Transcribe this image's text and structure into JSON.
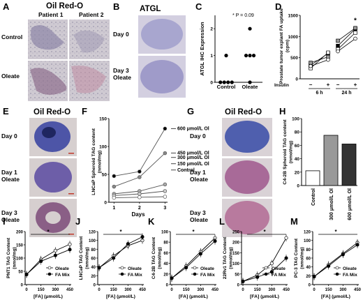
{
  "panels": {
    "A": {
      "label": "A",
      "title": "Oil Red-O",
      "cols": [
        "Patient 1",
        "Patient 2"
      ],
      "rows": [
        "Control",
        "Oleate"
      ]
    },
    "B": {
      "label": "B",
      "title": "ATGL",
      "rows": [
        "Day 0",
        "Day 3\nOleate"
      ]
    },
    "C": {
      "label": "C",
      "annotation": "* P = 0.09"
    },
    "D": {
      "label": "D",
      "insulin_label": "Insulin",
      "insulin_states": [
        "−",
        "+",
        "−",
        "+"
      ],
      "star": "*"
    },
    "E": {
      "label": "E",
      "title": "Oil Red-O",
      "rows": [
        "Day 0",
        "Day 1\nOleate",
        "Day 3\nOleate"
      ]
    },
    "F": {
      "label": "F"
    },
    "G": {
      "label": "G",
      "title": "Oil Red-O",
      "rows": [
        "Day 0",
        "Day 1\nOleate",
        "Day 3\nOleate"
      ]
    },
    "H": {
      "label": "H"
    },
    "I": {
      "label": "I",
      "star": "*"
    },
    "J": {
      "label": "J",
      "star": "*"
    },
    "K": {
      "label": "K",
      "star": "*"
    },
    "L": {
      "label": "L",
      "star": "*"
    },
    "M": {
      "label": "M",
      "star": "*"
    }
  },
  "colors": {
    "micro_bg": "#c7c2cc",
    "tissue_blue": "#5b6fb2",
    "tissue_red": "#b4546f",
    "scale_bar": "#c0392b"
  },
  "chart_data": [
    {
      "id": "C",
      "type": "scatter",
      "ylabel": "ATGL IHC Expression",
      "categories": [
        "Control",
        "Oleate"
      ],
      "series": [
        {
          "values": [
            [
              0,
              0,
              0,
              0,
              1
            ],
            [
              0,
              1,
              1,
              1,
              2
            ]
          ]
        }
      ],
      "ylim": [
        0,
        2.5
      ],
      "yticks": [
        0,
        1,
        2
      ]
    },
    {
      "id": "D",
      "type": "line",
      "ylabel": "Prostate tumor explant FA uptake\n(cpm)",
      "categories": [
        "6 h",
        "24 h"
      ],
      "ylim": [
        0,
        1500
      ],
      "yticks": [
        0,
        500,
        1000,
        1500
      ],
      "series": [
        {
          "values": [
            [
              320,
              600
            ],
            [
              780,
              1180
            ]
          ]
        },
        {
          "values": [
            [
              250,
              620
            ],
            [
              700,
              1090
            ]
          ]
        },
        {
          "values": [
            [
              380,
              520
            ],
            [
              900,
              1200
            ]
          ]
        },
        {
          "values": [
            [
              300,
              450
            ],
            [
              650,
              950
            ]
          ]
        }
      ]
    },
    {
      "id": "F",
      "type": "line",
      "ylabel": "LNCaP Spheroid TAG content\n(nmol/mg)",
      "xlabel": "Days",
      "x": [
        1,
        2,
        3
      ],
      "xlim": [
        0.8,
        3.1
      ],
      "ylim": [
        0,
        150
      ],
      "yticks": [
        0,
        50,
        100,
        150
      ],
      "series": [
        {
          "name": "600 μmol/L Ol",
          "values": [
            47,
            55,
            132
          ]
        },
        {
          "name": "450 μmol/L Ol",
          "values": [
            28,
            45,
            88
          ]
        },
        {
          "name": "300 μmol/L Ol",
          "values": [
            15,
            20,
            32
          ]
        },
        {
          "name": "150 μmol/L Ol",
          "values": [
            12,
            15,
            20
          ]
        },
        {
          "name": "Control",
          "values": [
            8,
            9,
            10
          ]
        }
      ]
    },
    {
      "id": "H",
      "type": "bar",
      "ylabel": "C4-2B Spheroid TAG content\n(nmol/mg)",
      "categories": [
        "Control",
        "300 μmol/L Ol",
        "600 μmol/L Ol"
      ],
      "values": [
        22,
        75,
        62
      ],
      "ylim": [
        0,
        100
      ],
      "yticks": [
        0,
        20,
        40,
        60,
        80,
        100
      ]
    },
    {
      "id": "I",
      "type": "line",
      "ylabel": "PNT1 TAG Content\n(nmol/mg)",
      "xlabel": "[FA] (μmol/L)",
      "x": [
        0,
        150,
        300,
        450
      ],
      "xlim": [
        0,
        450
      ],
      "ylim": [
        0,
        200
      ],
      "yticks": [
        0,
        50,
        100,
        150,
        200
      ],
      "series": [
        {
          "name": "Oleate",
          "values": [
            38,
            95,
            128,
            152
          ]
        },
        {
          "name": "FA Mix",
          "values": [
            38,
            88,
            110,
            132
          ]
        }
      ]
    },
    {
      "id": "J",
      "type": "line",
      "ylabel": "LNCaP TAG Content\n(nmol/mg)",
      "xlabel": "[FA] (μmol/L)",
      "x": [
        0,
        150,
        300,
        450
      ],
      "xlim": [
        0,
        450
      ],
      "ylim": [
        0,
        120
      ],
      "yticks": [
        0,
        20,
        40,
        60,
        80,
        100,
        120
      ],
      "series": [
        {
          "name": "Oleate",
          "values": [
            38,
            65,
            88,
            100
          ]
        },
        {
          "name": "FA Mix",
          "values": [
            38,
            60,
            92,
            108
          ]
        }
      ]
    },
    {
      "id": "K",
      "type": "line",
      "ylabel": "C4-2B TAG Content\n(nmol/mg)",
      "xlabel": "[FA] (μmol/L)",
      "x": [
        0,
        150,
        300,
        450
      ],
      "xlim": [
        0,
        450
      ],
      "ylim": [
        0,
        100
      ],
      "yticks": [
        0,
        20,
        40,
        60,
        80,
        100
      ],
      "series": [
        {
          "name": "Oleate",
          "values": [
            12,
            35,
            62,
            88
          ]
        },
        {
          "name": "FA Mix",
          "values": [
            12,
            32,
            58,
            82
          ]
        }
      ]
    },
    {
      "id": "L",
      "type": "line",
      "ylabel": "22Rv1 TAG Content\n(nmol/mg)",
      "xlabel": "[FA] (μmol/L)",
      "x": [
        0,
        150,
        300,
        450
      ],
      "xlim": [
        0,
        450
      ],
      "ylim": [
        0,
        250
      ],
      "yticks": [
        0,
        50,
        100,
        150,
        200,
        250
      ],
      "series": [
        {
          "name": "Oleate",
          "values": [
            15,
            45,
            100,
            220
          ]
        },
        {
          "name": "FA Mix",
          "values": [
            15,
            35,
            60,
            125
          ]
        }
      ]
    },
    {
      "id": "M",
      "type": "line",
      "ylabel": "PC-3 TAG Content\n(nmol/mg)",
      "xlabel": "[FA] (μmol/L)",
      "x": [
        0,
        150,
        300,
        450
      ],
      "xlim": [
        0,
        450
      ],
      "ylim": [
        0,
        120
      ],
      "yticks": [
        0,
        20,
        40,
        60,
        80,
        100,
        120
      ],
      "series": [
        {
          "name": "Oleate",
          "values": [
            18,
            45,
            70,
            95
          ]
        },
        {
          "name": "FA Mix",
          "values": [
            18,
            42,
            68,
            90
          ]
        }
      ]
    }
  ]
}
